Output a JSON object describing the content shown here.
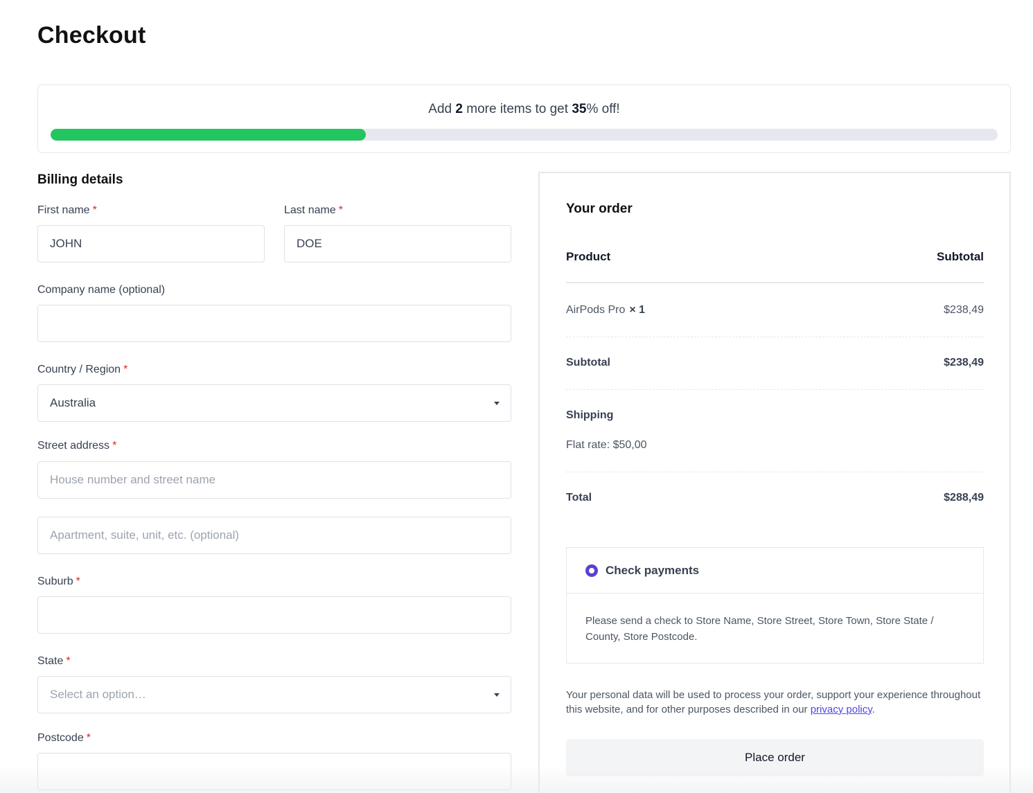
{
  "page": {
    "title": "Checkout"
  },
  "promo": {
    "prefix": "Add ",
    "count": "2",
    "middle": " more items to get ",
    "discount": "35",
    "suffix": "% off!",
    "progress_fraction": 0.333,
    "progress_color": "#22c55e"
  },
  "billing": {
    "heading": "Billing details",
    "required_mark": "*",
    "first_name": {
      "label": "First name",
      "value": "JOHN"
    },
    "last_name": {
      "label": "Last name",
      "value": "DOE"
    },
    "company": {
      "label": "Company name (optional)",
      "value": ""
    },
    "country": {
      "label": "Country / Region",
      "selected": "Australia"
    },
    "street": {
      "label": "Street address",
      "placeholder1": "House number and street name",
      "placeholder2": "Apartment, suite, unit, etc. (optional)"
    },
    "suburb": {
      "label": "Suburb",
      "value": ""
    },
    "state": {
      "label": "State",
      "placeholder": "Select an option…"
    },
    "postcode": {
      "label": "Postcode",
      "value": ""
    }
  },
  "order": {
    "heading": "Your order",
    "col_product": "Product",
    "col_subtotal": "Subtotal",
    "items": [
      {
        "name": "AirPods Pro",
        "qty": "× 1",
        "price": "$238,49"
      }
    ],
    "subtotal_label": "Subtotal",
    "subtotal_value": "$238,49",
    "shipping_label": "Shipping",
    "shipping_method": "Flat rate: $50,00",
    "total_label": "Total",
    "total_value": "$288,49",
    "payment": {
      "label": "Check payments",
      "description": "Please send a check to Store Name, Store Street, Store Town, Store State / County, Store Postcode.",
      "accent_color": "#5b3fd6"
    },
    "privacy_text": "Your personal data will be used to process your order, support your experience throughout this website, and for other purposes described in our ",
    "privacy_link": "privacy policy",
    "privacy_end": ".",
    "place_order_label": "Place order"
  }
}
